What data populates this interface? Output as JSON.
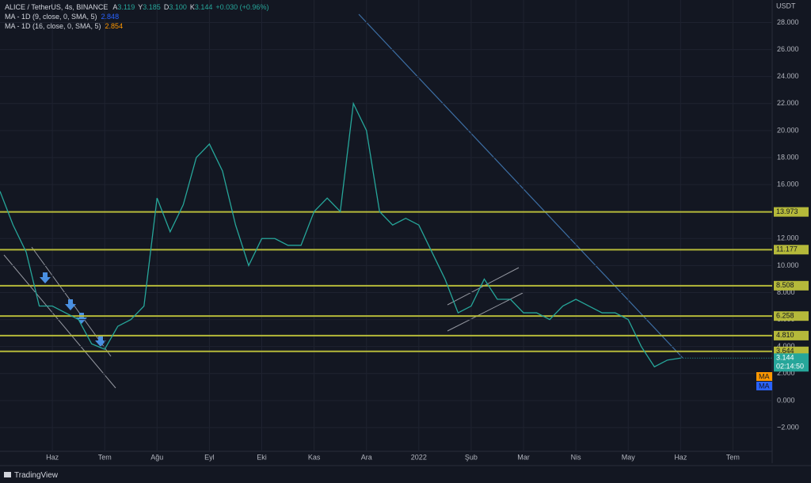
{
  "header": {
    "symbol": "ALICE / TetherUS, 4s, BINANCE",
    "ohlc": [
      {
        "key": "A",
        "value": "3.119"
      },
      {
        "key": "Y",
        "value": "3.185"
      },
      {
        "key": "D",
        "value": "3.100"
      },
      {
        "key": "K",
        "value": "3.144"
      }
    ],
    "change": "+0.030 (+0.96%)",
    "indicators": [
      {
        "name": "MA - 1D (9, close, 0, SMA, 5)",
        "value": "2.848",
        "color": "#2962ff"
      },
      {
        "name": "MA - 1D (16, close, 0, SMA, 5)",
        "value": "2.854",
        "color": "#ff9800"
      }
    ]
  },
  "chart_data": {
    "type": "line",
    "axis_unit": "USDT",
    "categories": [
      null,
      null,
      null,
      null,
      "Haz",
      null,
      null,
      null,
      "Tem",
      null,
      null,
      null,
      "Ağu",
      null,
      null,
      null,
      "Eyl",
      null,
      null,
      null,
      "Eki",
      null,
      null,
      null,
      "Kas",
      null,
      null,
      null,
      "Ara",
      null,
      null,
      null,
      "2022",
      null,
      null,
      null,
      "Şub",
      null,
      null,
      null,
      "Mar",
      null,
      null,
      null,
      "Nis",
      null,
      null,
      null,
      "May",
      null,
      null,
      null,
      "Haz",
      null,
      null,
      null,
      "Tem",
      null,
      null
    ],
    "series": [
      {
        "name": "ALICE / TetherUS",
        "color": "#26a69a",
        "values": [
          15.5,
          13,
          11,
          7,
          7,
          6.5,
          6,
          4.2,
          3.8,
          5.5,
          6,
          7,
          15,
          12.5,
          14.5,
          18,
          19,
          17,
          13,
          10,
          12,
          12,
          11.5,
          11.5,
          14,
          15,
          14,
          22,
          20,
          14,
          13,
          13.5,
          13,
          11,
          9,
          6.5,
          7,
          9,
          7.5,
          7.5,
          6.5,
          6.5,
          6,
          7,
          7.5,
          7,
          6.5,
          6.5,
          6,
          4,
          2.5,
          3,
          3.144,
          null,
          null,
          null,
          null,
          null,
          null
        ]
      }
    ],
    "ylim": [
      -4.64,
      29.67
    ],
    "yticks": [
      {
        "value": -2,
        "label": "−2.000"
      },
      {
        "value": 0,
        "label": "0.000"
      },
      {
        "value": 2,
        "label": "2.000"
      },
      {
        "value": 4,
        "label": "4.000"
      },
      {
        "value": 6,
        "label": "6.000"
      },
      {
        "value": 8,
        "label": "8.000"
      },
      {
        "value": 10,
        "label": "10.000"
      },
      {
        "value": 12,
        "label": "12.000"
      },
      {
        "value": 14,
        "label": "14.000"
      },
      {
        "value": 16,
        "label": "16.000"
      },
      {
        "value": 18,
        "label": "18.000"
      },
      {
        "value": 20,
        "label": "20.000"
      },
      {
        "value": 22,
        "label": "22.000"
      },
      {
        "value": 24,
        "label": "24.000"
      },
      {
        "value": 26,
        "label": "26.000"
      },
      {
        "value": 28,
        "label": "28.000"
      }
    ],
    "levels": [
      13.973,
      11.177,
      8.508,
      6.258,
      {
        "value": 4.81,
        "label": "4.810"
      },
      3.644
    ],
    "level_color": "#b5b93a",
    "countdown": "02:14:50",
    "ma_badges": [
      "MA",
      "MA"
    ],
    "grid": true
  },
  "footer": "TradingView"
}
